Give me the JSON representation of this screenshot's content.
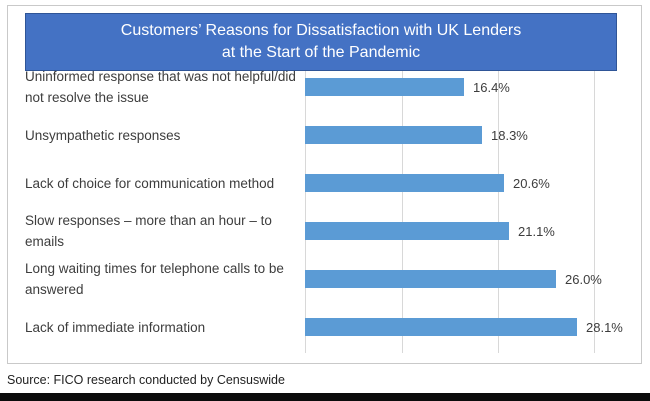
{
  "page": {
    "source_note": "Source: FICO research conducted by Censuswide"
  },
  "colors": {
    "banner_blue": "#4472C4",
    "banner_border": "#2F5597",
    "bar_blue": "#5B9BD5",
    "gridline": "#D8D8D8",
    "frame_border": "#C9C9C9",
    "label_text": "#3D3D3D",
    "title_text": "#FFFFFF",
    "source_text": "#1F1F1F",
    "bottom_strip": "#0B0B0B"
  },
  "chart_data": {
    "type": "bar",
    "orientation": "horizontal",
    "title": "Customers’ Reasons for Dissatisfaction with UK Lenders\nat the Start of the Pandemic",
    "categories": [
      "Uninformed response that was not helpful/did\nnot resolve the issue",
      "Unsympathetic responses",
      "Lack of choice for communication method",
      "Slow responses – more than an hour – to\nemails",
      "Long waiting times for telephone calls to be\nanswered",
      "Lack of immediate information"
    ],
    "values": [
      16.4,
      18.3,
      20.6,
      21.1,
      26.0,
      28.1
    ],
    "value_labels": [
      "16.4%",
      "18.3%",
      "20.6%",
      "21.1%",
      "26.0%",
      "28.1%"
    ],
    "xlabel": "",
    "ylabel": "",
    "xlim": [
      0,
      30
    ],
    "gridline_values": [
      0,
      10,
      20,
      30
    ],
    "grid": true,
    "legend": false,
    "data_labels": true
  }
}
